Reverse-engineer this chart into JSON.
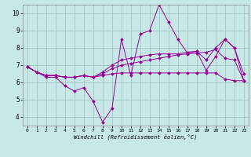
{
  "title": "",
  "xlabel": "Windchill (Refroidissement éolien,°C)",
  "background_color": "#c8e8e8",
  "grid_color": "#a0c8c8",
  "line_color": "#990099",
  "xlim": [
    -0.5,
    23.5
  ],
  "ylim": [
    3.5,
    10.5
  ],
  "yticks": [
    4,
    5,
    6,
    7,
    8,
    9,
    10
  ],
  "xticks": [
    0,
    1,
    2,
    3,
    4,
    5,
    6,
    7,
    8,
    9,
    10,
    11,
    12,
    13,
    14,
    15,
    16,
    17,
    18,
    19,
    20,
    21,
    22,
    23
  ],
  "series": [
    [
      6.9,
      6.6,
      6.3,
      6.3,
      5.8,
      5.5,
      5.7,
      4.9,
      3.7,
      4.5,
      8.5,
      6.4,
      8.8,
      9.0,
      10.5,
      9.5,
      8.5,
      7.7,
      7.8,
      6.7,
      7.5,
      8.5,
      8.0,
      6.5
    ],
    [
      6.9,
      6.6,
      6.4,
      6.4,
      6.3,
      6.3,
      6.4,
      6.3,
      6.4,
      6.5,
      6.55,
      6.55,
      6.55,
      6.55,
      6.55,
      6.55,
      6.55,
      6.55,
      6.55,
      6.55,
      6.55,
      6.2,
      6.1,
      6.1
    ],
    [
      6.9,
      6.6,
      6.4,
      6.4,
      6.3,
      6.3,
      6.4,
      6.3,
      6.5,
      6.8,
      7.0,
      7.1,
      7.2,
      7.3,
      7.4,
      7.5,
      7.6,
      7.65,
      7.7,
      7.75,
      7.9,
      7.4,
      7.3,
      6.1
    ],
    [
      6.9,
      6.6,
      6.4,
      6.4,
      6.3,
      6.3,
      6.4,
      6.3,
      6.6,
      7.0,
      7.3,
      7.4,
      7.5,
      7.6,
      7.65,
      7.65,
      7.65,
      7.75,
      7.8,
      7.3,
      8.0,
      8.5,
      8.0,
      6.1
    ]
  ]
}
